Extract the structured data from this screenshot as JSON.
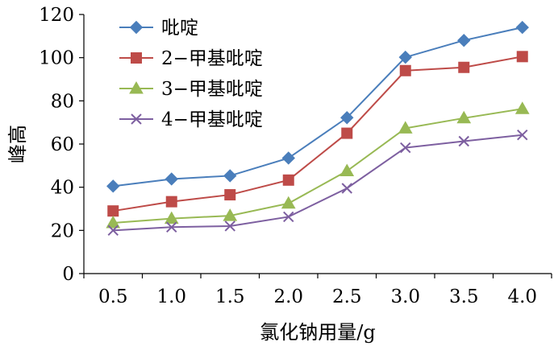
{
  "chart_data": {
    "type": "line",
    "title": "",
    "xlabel": "氯化钠用量/g",
    "ylabel": "峰高",
    "x": [
      "0.5",
      "1.0",
      "1.5",
      "2.0",
      "2.5",
      "3.0",
      "3.5",
      "4.0"
    ],
    "ylim": [
      0,
      120
    ],
    "yticks": [
      "0",
      "20",
      "40",
      "60",
      "80",
      "100",
      "120"
    ],
    "grid": false,
    "legend_position": "top-left",
    "series": [
      {
        "name": "吡啶",
        "marker": "diamond",
        "color": "#4a7ebb",
        "values": [
          40.5,
          43.8,
          45.3,
          53.5,
          72.2,
          100.2,
          108.0,
          114.0
        ]
      },
      {
        "name": "2−甲基吡啶",
        "marker": "square",
        "color": "#be4b48",
        "values": [
          29.0,
          33.3,
          36.5,
          43.3,
          65.0,
          94.0,
          95.5,
          100.5
        ]
      },
      {
        "name": "3−甲基吡啶",
        "marker": "triangle",
        "color": "#98b954",
        "values": [
          23.5,
          25.5,
          26.8,
          32.5,
          47.5,
          67.3,
          72.0,
          76.3
        ]
      },
      {
        "name": "4−甲基吡啶",
        "marker": "x",
        "color": "#7d5fa0",
        "values": [
          20.0,
          21.5,
          22.0,
          26.3,
          39.5,
          58.3,
          61.3,
          64.2
        ]
      }
    ]
  }
}
